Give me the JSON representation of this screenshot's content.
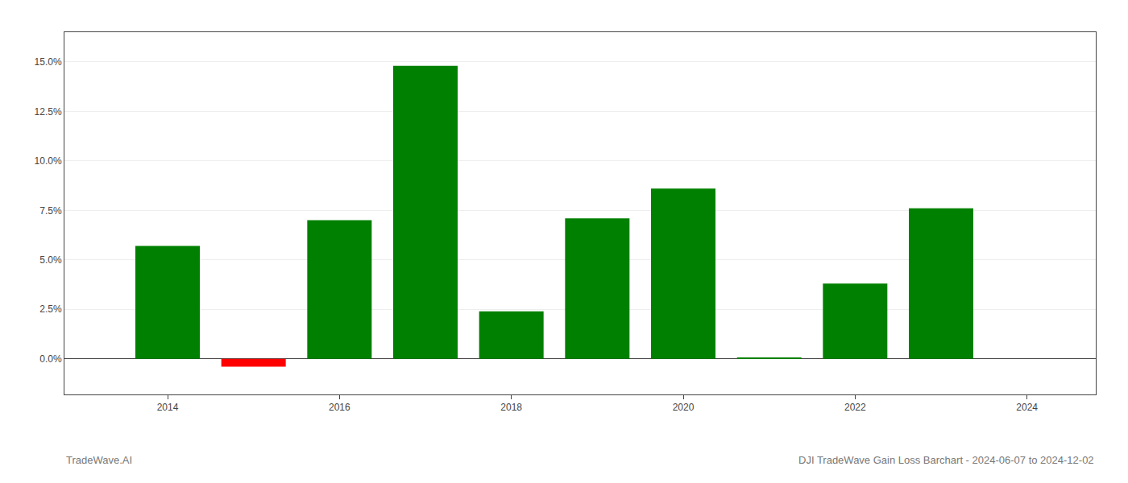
{
  "chart_data": {
    "type": "bar",
    "x": [
      2014,
      2015,
      2016,
      2017,
      2018,
      2019,
      2020,
      2021,
      2022,
      2023
    ],
    "values": [
      0.057,
      -0.004,
      0.07,
      0.148,
      0.024,
      0.071,
      0.086,
      0.0005,
      0.038,
      0.076
    ],
    "colors": [
      "#008000",
      "#ff0000",
      "#008000",
      "#008000",
      "#008000",
      "#008000",
      "#008000",
      "#008000",
      "#008000",
      "#008000"
    ],
    "xlim": [
      2012.8,
      2024.8
    ],
    "xticks": [
      2014,
      2016,
      2018,
      2020,
      2022,
      2024
    ],
    "ylim": [
      -0.018,
      0.165
    ],
    "yticks": [
      {
        "value": 0.0,
        "label": "0.0%"
      },
      {
        "value": 0.025,
        "label": "2.5%"
      },
      {
        "value": 0.05,
        "label": "5.0%"
      },
      {
        "value": 0.075,
        "label": "7.5%"
      },
      {
        "value": 0.1,
        "label": "10.0%"
      },
      {
        "value": 0.125,
        "label": "12.5%"
      },
      {
        "value": 0.15,
        "label": "15.0%"
      }
    ],
    "grid": true,
    "annotations": [
      "TradeWave.AI",
      "DJI TradeWave Gain Loss Barchart - 2024-06-07 to 2024-12-02"
    ]
  }
}
